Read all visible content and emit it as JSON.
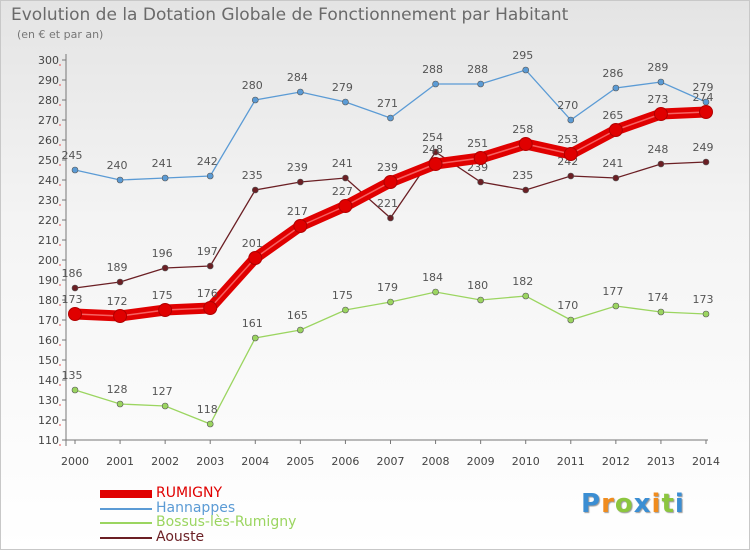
{
  "title": "Evolution de la Dotation Globale de Fonctionnement par Habitant",
  "subtitle": "(en € et par an)",
  "brand": {
    "letters": [
      "P",
      "r",
      "o",
      "x",
      "i",
      "t",
      "i"
    ],
    "colors": [
      "#3b8ed3",
      "#f08c1e",
      "#8cc63f",
      "#3b8ed3",
      "#f08c1e",
      "#8cc63f",
      "#3b8ed3"
    ]
  },
  "chart_data": {
    "type": "line",
    "title": "Evolution de la Dotation Globale de Fonctionnement par Habitant",
    "subtitle": "(en € et par an)",
    "xlabel": "",
    "ylabel": "",
    "x": [
      "2000",
      "2001",
      "2002",
      "2003",
      "2004",
      "2005",
      "2006",
      "2007",
      "2008",
      "2009",
      "2010",
      "2011",
      "2012",
      "2013",
      "2014"
    ],
    "ylim": [
      110,
      300
    ],
    "yticks": [
      110,
      120,
      130,
      140,
      150,
      160,
      170,
      180,
      190,
      200,
      210,
      220,
      230,
      240,
      250,
      260,
      270,
      280,
      290,
      300
    ],
    "grid": false,
    "legend_position": "bottom-left",
    "series": [
      {
        "name": "Hannappes",
        "color": "#5b9bd5",
        "emphasis": false,
        "values": [
          245,
          240,
          241,
          242,
          280,
          284,
          279,
          271,
          288,
          288,
          295,
          270,
          286,
          289,
          279
        ]
      },
      {
        "name": "Bossus-lès-Rumigny",
        "color": "#9bd560",
        "emphasis": false,
        "values": [
          135,
          128,
          127,
          118,
          161,
          165,
          175,
          179,
          184,
          180,
          182,
          170,
          177,
          174,
          173
        ]
      },
      {
        "name": "Aouste",
        "color": "#6b1f24",
        "emphasis": false,
        "values": [
          186,
          189,
          196,
          197,
          235,
          239,
          241,
          221,
          254,
          239,
          235,
          242,
          241,
          248,
          249
        ]
      },
      {
        "name": "RUMIGNY",
        "color": "#e00000",
        "emphasis": true,
        "values": [
          173,
          172,
          175,
          176,
          201,
          217,
          227,
          239,
          248,
          251,
          258,
          253,
          265,
          273,
          274
        ]
      }
    ],
    "legend": [
      "RUMIGNY",
      "Hannappes",
      "Bossus-lès-Rumigny",
      "Aouste"
    ]
  }
}
